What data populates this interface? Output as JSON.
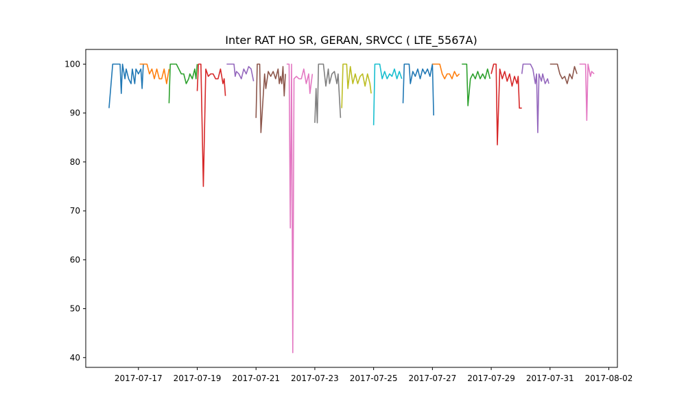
{
  "chart_data": {
    "type": "line",
    "title": "Inter RAT HO SR, GERAN, SRVCC ( LTE_5567A)",
    "xlabel": "",
    "ylabel": "",
    "x_is_date": true,
    "xlim": [
      "2017-07-15T05:00",
      "2017-08-02T07:00"
    ],
    "ylim": [
      38,
      103
    ],
    "x_ticks": [
      "2017-07-17",
      "2017-07-19",
      "2017-07-21",
      "2017-07-23",
      "2017-07-25",
      "2017-07-27",
      "2017-07-29",
      "2017-07-31",
      "2017-08-02"
    ],
    "y_ticks": [
      40,
      50,
      60,
      70,
      80,
      90,
      100
    ],
    "grid": false,
    "series": [
      {
        "color": "#1f77b4",
        "points": [
          [
            "2017-07-16T00:00",
            91
          ],
          [
            "2017-07-16T03:00",
            100
          ],
          [
            "2017-07-16T06:00",
            100
          ],
          [
            "2017-07-16T09:00",
            100
          ],
          [
            "2017-07-16T10:00",
            94
          ],
          [
            "2017-07-16T11:00",
            100
          ],
          [
            "2017-07-16T13:00",
            97
          ],
          [
            "2017-07-16T14:00",
            99
          ],
          [
            "2017-07-16T16:00",
            97
          ],
          [
            "2017-07-16T18:00",
            96
          ],
          [
            "2017-07-16T19:00",
            99
          ],
          [
            "2017-07-16T21:00",
            96
          ],
          [
            "2017-07-16T22:00",
            99
          ],
          [
            "2017-07-17T00:00",
            98
          ],
          [
            "2017-07-17T02:00",
            99
          ],
          [
            "2017-07-17T03:00",
            95
          ],
          [
            "2017-07-17T04:00",
            100
          ]
        ]
      },
      {
        "color": "#ff7f0e",
        "points": [
          [
            "2017-07-17T01:00",
            100
          ],
          [
            "2017-07-17T07:00",
            100
          ],
          [
            "2017-07-17T09:00",
            98
          ],
          [
            "2017-07-17T11:00",
            99
          ],
          [
            "2017-07-17T13:00",
            97
          ],
          [
            "2017-07-17T15:00",
            99
          ],
          [
            "2017-07-17T17:00",
            97
          ],
          [
            "2017-07-17T19:00",
            97
          ],
          [
            "2017-07-17T21:00",
            99
          ],
          [
            "2017-07-17T23:00",
            96
          ],
          [
            "2017-07-18T01:00",
            99
          ]
        ]
      },
      {
        "color": "#2ca02c",
        "points": [
          [
            "2017-07-18T01:00",
            92
          ],
          [
            "2017-07-18T02:00",
            100
          ],
          [
            "2017-07-18T05:00",
            100
          ],
          [
            "2017-07-18T07:00",
            100
          ],
          [
            "2017-07-18T09:00",
            99
          ],
          [
            "2017-07-18T11:00",
            98
          ],
          [
            "2017-07-18T13:00",
            98
          ],
          [
            "2017-07-18T15:00",
            96
          ],
          [
            "2017-07-18T17:00",
            97
          ],
          [
            "2017-07-18T18:00",
            98
          ],
          [
            "2017-07-18T20:00",
            97
          ],
          [
            "2017-07-18T22:00",
            99
          ],
          [
            "2017-07-18T23:00",
            97
          ],
          [
            "2017-07-19T00:00",
            100
          ]
        ]
      },
      {
        "color": "#d62728",
        "points": [
          [
            "2017-07-19T00:00",
            94.5
          ],
          [
            "2017-07-19T01:00",
            100
          ],
          [
            "2017-07-19T03:00",
            100
          ],
          [
            "2017-07-19T05:00",
            75
          ],
          [
            "2017-07-19T07:00",
            99
          ],
          [
            "2017-07-19T09:00",
            97.5
          ],
          [
            "2017-07-19T11:00",
            98
          ],
          [
            "2017-07-19T13:00",
            98
          ],
          [
            "2017-07-19T15:00",
            97
          ],
          [
            "2017-07-19T17:00",
            97
          ],
          [
            "2017-07-19T19:00",
            99
          ],
          [
            "2017-07-19T21:00",
            96
          ],
          [
            "2017-07-19T22:00",
            97
          ],
          [
            "2017-07-19T23:00",
            93.5
          ]
        ]
      },
      {
        "color": "#9467bd",
        "points": [
          [
            "2017-07-20T00:00",
            100
          ],
          [
            "2017-07-20T06:00",
            100
          ],
          [
            "2017-07-20T07:00",
            97.5
          ],
          [
            "2017-07-20T08:00",
            98.5
          ],
          [
            "2017-07-20T10:00",
            98
          ],
          [
            "2017-07-20T12:00",
            97
          ],
          [
            "2017-07-20T14:00",
            99
          ],
          [
            "2017-07-20T16:00",
            98
          ],
          [
            "2017-07-20T18:00",
            99.5
          ],
          [
            "2017-07-20T20:00",
            99
          ],
          [
            "2017-07-20T22:00",
            96.5
          ]
        ]
      },
      {
        "color": "#8c564b",
        "points": [
          [
            "2017-07-21T00:00",
            89
          ],
          [
            "2017-07-21T01:00",
            100
          ],
          [
            "2017-07-21T03:00",
            100
          ],
          [
            "2017-07-21T04:00",
            86
          ],
          [
            "2017-07-21T07:00",
            98
          ],
          [
            "2017-07-21T08:00",
            95
          ],
          [
            "2017-07-21T10:00",
            98.5
          ],
          [
            "2017-07-21T12:00",
            97.5
          ],
          [
            "2017-07-21T14:00",
            98.5
          ],
          [
            "2017-07-21T16:00",
            97
          ],
          [
            "2017-07-21T18:00",
            99
          ],
          [
            "2017-07-21T19:00",
            96
          ],
          [
            "2017-07-21T20:00",
            97.5
          ],
          [
            "2017-07-21T21:00",
            96
          ],
          [
            "2017-07-21T22:00",
            99.5
          ],
          [
            "2017-07-21T23:00",
            93.5
          ],
          [
            "2017-07-22T00:00",
            98
          ]
        ]
      },
      {
        "color": "#e377c2",
        "points": [
          [
            "2017-07-22T01:00",
            100
          ],
          [
            "2017-07-22T03:00",
            100
          ],
          [
            "2017-07-22T04:00",
            66.5
          ],
          [
            "2017-07-22T05:00",
            100
          ],
          [
            "2017-07-22T06:00",
            41
          ],
          [
            "2017-07-22T07:00",
            97
          ],
          [
            "2017-07-22T09:00",
            97.5
          ],
          [
            "2017-07-22T11:00",
            97
          ],
          [
            "2017-07-22T13:00",
            97
          ],
          [
            "2017-07-22T15:00",
            99
          ],
          [
            "2017-07-22T17:00",
            96
          ],
          [
            "2017-07-22T19:00",
            98
          ],
          [
            "2017-07-22T20:00",
            94
          ],
          [
            "2017-07-22T22:00",
            98
          ]
        ]
      },
      {
        "color": "#7f7f7f",
        "points": [
          [
            "2017-07-23T00:00",
            88
          ],
          [
            "2017-07-23T01:00",
            95
          ],
          [
            "2017-07-23T02:00",
            88
          ],
          [
            "2017-07-23T03:00",
            100
          ],
          [
            "2017-07-23T05:00",
            100
          ],
          [
            "2017-07-23T07:00",
            100
          ],
          [
            "2017-07-23T09:00",
            95.5
          ],
          [
            "2017-07-23T11:00",
            99
          ],
          [
            "2017-07-23T12:00",
            96
          ],
          [
            "2017-07-23T14:00",
            98
          ],
          [
            "2017-07-23T16:00",
            98.5
          ],
          [
            "2017-07-23T18:00",
            96
          ],
          [
            "2017-07-23T19:00",
            98
          ],
          [
            "2017-07-23T21:00",
            89
          ]
        ]
      },
      {
        "color": "#bcbd22",
        "points": [
          [
            "2017-07-23T22:00",
            91
          ],
          [
            "2017-07-23T23:00",
            100
          ],
          [
            "2017-07-24T02:00",
            100
          ],
          [
            "2017-07-24T03:00",
            95
          ],
          [
            "2017-07-24T05:00",
            99.5
          ],
          [
            "2017-07-24T07:00",
            96
          ],
          [
            "2017-07-24T09:00",
            98
          ],
          [
            "2017-07-24T11:00",
            96
          ],
          [
            "2017-07-24T13:00",
            97.5
          ],
          [
            "2017-07-24T15:00",
            98
          ],
          [
            "2017-07-24T17:00",
            95.5
          ],
          [
            "2017-07-24T19:00",
            98
          ],
          [
            "2017-07-24T21:00",
            96
          ],
          [
            "2017-07-24T22:00",
            94
          ]
        ]
      },
      {
        "color": "#17becf",
        "points": [
          [
            "2017-07-25T00:00",
            87.5
          ],
          [
            "2017-07-25T01:00",
            100
          ],
          [
            "2017-07-25T05:00",
            100
          ],
          [
            "2017-07-25T07:00",
            97
          ],
          [
            "2017-07-25T09:00",
            98.5
          ],
          [
            "2017-07-25T11:00",
            97
          ],
          [
            "2017-07-25T13:00",
            98
          ],
          [
            "2017-07-25T15:00",
            97.5
          ],
          [
            "2017-07-25T17:00",
            99
          ],
          [
            "2017-07-25T19:00",
            97
          ],
          [
            "2017-07-25T21:00",
            98.5
          ],
          [
            "2017-07-25T23:00",
            97
          ]
        ]
      },
      {
        "color": "#1f77b4",
        "points": [
          [
            "2017-07-26T00:00",
            92
          ],
          [
            "2017-07-26T01:00",
            100
          ],
          [
            "2017-07-26T05:00",
            100
          ],
          [
            "2017-07-26T06:00",
            96
          ],
          [
            "2017-07-26T08:00",
            98.5
          ],
          [
            "2017-07-26T10:00",
            97.5
          ],
          [
            "2017-07-26T12:00",
            99
          ],
          [
            "2017-07-26T14:00",
            97
          ],
          [
            "2017-07-26T16:00",
            99
          ],
          [
            "2017-07-26T18:00",
            98
          ],
          [
            "2017-07-26T20:00",
            99
          ],
          [
            "2017-07-26T22:00",
            97.5
          ],
          [
            "2017-07-27T00:00",
            100
          ],
          [
            "2017-07-27T01:00",
            89.5
          ]
        ]
      },
      {
        "color": "#ff7f0e",
        "points": [
          [
            "2017-07-27T00:00",
            100
          ],
          [
            "2017-07-27T06:00",
            100
          ],
          [
            "2017-07-27T08:00",
            98
          ],
          [
            "2017-07-27T10:00",
            97
          ],
          [
            "2017-07-27T12:00",
            98
          ],
          [
            "2017-07-27T14:00",
            98
          ],
          [
            "2017-07-27T16:00",
            97
          ],
          [
            "2017-07-27T18:00",
            98.5
          ],
          [
            "2017-07-27T20:00",
            97.5
          ],
          [
            "2017-07-27T22:00",
            98
          ]
        ]
      },
      {
        "color": "#2ca02c",
        "points": [
          [
            "2017-07-28T00:00",
            100
          ],
          [
            "2017-07-28T04:00",
            100
          ],
          [
            "2017-07-28T05:00",
            91.5
          ],
          [
            "2017-07-28T07:00",
            97
          ],
          [
            "2017-07-28T09:00",
            98
          ],
          [
            "2017-07-28T11:00",
            97
          ],
          [
            "2017-07-28T13:00",
            98.5
          ],
          [
            "2017-07-28T15:00",
            97
          ],
          [
            "2017-07-28T17:00",
            98
          ],
          [
            "2017-07-28T19:00",
            97
          ],
          [
            "2017-07-28T21:00",
            99
          ],
          [
            "2017-07-28T23:00",
            97
          ]
        ]
      },
      {
        "color": "#d62728",
        "points": [
          [
            "2017-07-29T00:00",
            98
          ],
          [
            "2017-07-29T02:00",
            100
          ],
          [
            "2017-07-29T04:00",
            100
          ],
          [
            "2017-07-29T05:00",
            83.5
          ],
          [
            "2017-07-29T07:00",
            99
          ],
          [
            "2017-07-29T09:00",
            97
          ],
          [
            "2017-07-29T11:00",
            98.5
          ],
          [
            "2017-07-29T13:00",
            96.5
          ],
          [
            "2017-07-29T15:00",
            98
          ],
          [
            "2017-07-29T17:00",
            95.5
          ],
          [
            "2017-07-29T19:00",
            97.5
          ],
          [
            "2017-07-29T21:00",
            96
          ],
          [
            "2017-07-29T22:00",
            97.5
          ],
          [
            "2017-07-29T23:00",
            91
          ],
          [
            "2017-07-30T01:00",
            91
          ]
        ]
      },
      {
        "color": "#9467bd",
        "points": [
          [
            "2017-07-30T01:00",
            98
          ],
          [
            "2017-07-30T02:00",
            100
          ],
          [
            "2017-07-30T08:00",
            100
          ],
          [
            "2017-07-30T10:00",
            99
          ],
          [
            "2017-07-30T12:00",
            96
          ],
          [
            "2017-07-30T13:00",
            98
          ],
          [
            "2017-07-30T14:00",
            86
          ],
          [
            "2017-07-30T15:00",
            98
          ],
          [
            "2017-07-30T17:00",
            96.5
          ],
          [
            "2017-07-30T18:00",
            98
          ],
          [
            "2017-07-30T20:00",
            96
          ],
          [
            "2017-07-30T22:00",
            97
          ],
          [
            "2017-07-30T23:00",
            96
          ]
        ]
      },
      {
        "color": "#8c564b",
        "points": [
          [
            "2017-07-31T00:00",
            100
          ],
          [
            "2017-07-31T06:00",
            100
          ],
          [
            "2017-07-31T08:00",
            98
          ],
          [
            "2017-07-31T10:00",
            97
          ],
          [
            "2017-07-31T12:00",
            97.5
          ],
          [
            "2017-07-31T14:00",
            96
          ],
          [
            "2017-07-31T16:00",
            98
          ],
          [
            "2017-07-31T18:00",
            97
          ],
          [
            "2017-07-31T20:00",
            99.5
          ],
          [
            "2017-07-31T22:00",
            98
          ]
        ]
      },
      {
        "color": "#e377c2",
        "points": [
          [
            "2017-08-01T00:00",
            100
          ],
          [
            "2017-08-01T05:00",
            100
          ],
          [
            "2017-08-01T06:00",
            88.5
          ],
          [
            "2017-08-01T07:00",
            100
          ],
          [
            "2017-08-01T09:00",
            97.5
          ],
          [
            "2017-08-01T10:00",
            98.5
          ],
          [
            "2017-08-01T12:00",
            98
          ]
        ]
      }
    ]
  }
}
